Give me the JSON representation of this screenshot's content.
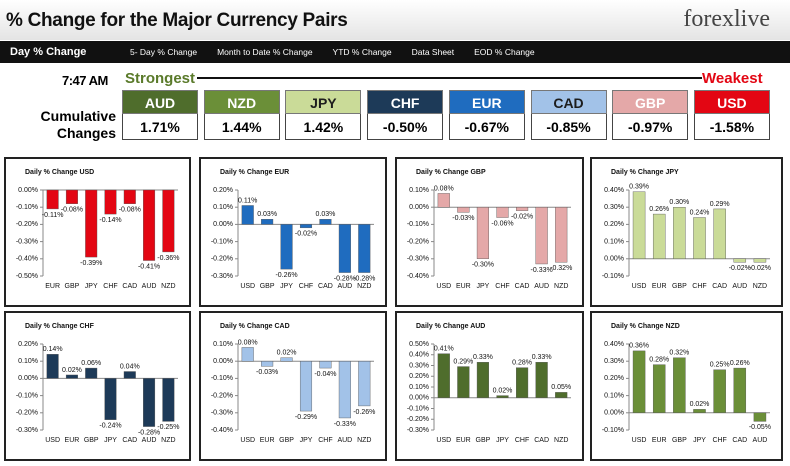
{
  "header": {
    "title": "% Change for the Major Currency Pairs",
    "logo": "forexlive"
  },
  "tabs": [
    "Day % Change",
    "5- Day % Change",
    "Month to Date % Change",
    "YTD % Change",
    "Data Sheet",
    "EOD % Change"
  ],
  "time": "7:47 AM",
  "strongest": "Strongest",
  "weakest": "Weakest",
  "cumulative": {
    "label": "Cumulative Changes",
    "currencies": [
      "AUD",
      "NZD",
      "JPY",
      "CHF",
      "EUR",
      "CAD",
      "GBP",
      "USD"
    ],
    "colors": [
      "#4f6d2c",
      "#6b8f38",
      "#cadb98",
      "#1d3a58",
      "#1f6cbf",
      "#a2c2e8",
      "#e4a8a8",
      "#e30613"
    ],
    "text_colors": [
      "#ffffff",
      "#ffffff",
      "#1d1d1d",
      "#ffffff",
      "#ffffff",
      "#1d1d1d",
      "#ffffff",
      "#ffffff"
    ],
    "values": [
      1.71,
      1.44,
      1.42,
      -0.5,
      -0.67,
      -0.85,
      -0.97,
      -1.58
    ],
    "value_labels": [
      "1.71%",
      "1.44%",
      "1.42%",
      "-0.50%",
      "-0.67%",
      "-0.85%",
      "-0.97%",
      "-1.58%"
    ]
  },
  "chart_data": [
    {
      "type": "bar",
      "title": "Daily % Change USD",
      "color": "#e30613",
      "categories": [
        "EUR",
        "GBP",
        "JPY",
        "CHF",
        "CAD",
        "AUD",
        "NZD"
      ],
      "values": [
        -0.11,
        -0.08,
        -0.39,
        -0.14,
        -0.08,
        -0.41,
        -0.36
      ],
      "value_labels": [
        "-0.11%",
        "-0.08%",
        "-0.39%",
        "-0.14%",
        "-0.08%",
        "-0.41%",
        "-0.36%"
      ],
      "ylim": [
        -0.5,
        0
      ],
      "yticks": [
        {
          "value": 0,
          "label": "0.00%"
        },
        {
          "value": -0.1,
          "label": "-0.10%"
        },
        {
          "value": -0.2,
          "label": "-0.20%"
        },
        {
          "value": -0.3,
          "label": "-0.30%"
        },
        {
          "value": -0.4,
          "label": "-0.40%"
        },
        {
          "value": -0.5,
          "label": "-0.50%"
        }
      ]
    },
    {
      "type": "bar",
      "title": "Daily % Change EUR",
      "color": "#1f6cbf",
      "categories": [
        "USD",
        "GBP",
        "JPY",
        "CHF",
        "CAD",
        "AUD",
        "NZD"
      ],
      "values": [
        0.11,
        0.03,
        -0.26,
        -0.02,
        0.03,
        -0.28,
        -0.28
      ],
      "value_labels": [
        "0.11%",
        "0.03%",
        "-0.26%",
        "-0.02%",
        "0.03%",
        "-0.28%",
        "-0.28%"
      ],
      "ylim": [
        -0.3,
        0.2
      ],
      "yticks": [
        {
          "value": 0.2,
          "label": "0.20%"
        },
        {
          "value": 0.1,
          "label": "0.10%"
        },
        {
          "value": 0,
          "label": "0.00%"
        },
        {
          "value": -0.1,
          "label": "-0.10%"
        },
        {
          "value": -0.2,
          "label": "-0.20%"
        },
        {
          "value": -0.3,
          "label": "-0.30%"
        }
      ]
    },
    {
      "type": "bar",
      "title": "Daily % Change GBP",
      "color": "#e4a8a8",
      "categories": [
        "USD",
        "EUR",
        "JPY",
        "CHF",
        "CAD",
        "AUD",
        "NZD"
      ],
      "values": [
        0.08,
        -0.03,
        -0.3,
        -0.06,
        -0.02,
        -0.33,
        -0.32
      ],
      "value_labels": [
        "0.08%",
        "-0.03%",
        "-0.30%",
        "-0.06%",
        "-0.02%",
        "-0.33%",
        "-0.32%"
      ],
      "ylim": [
        -0.4,
        0.1
      ],
      "yticks": [
        {
          "value": 0.1,
          "label": "0.10%"
        },
        {
          "value": 0,
          "label": "0.00%"
        },
        {
          "value": -0.1,
          "label": "-0.10%"
        },
        {
          "value": -0.2,
          "label": "-0.20%"
        },
        {
          "value": -0.3,
          "label": "-0.30%"
        },
        {
          "value": -0.4,
          "label": "-0.40%"
        }
      ]
    },
    {
      "type": "bar",
      "title": "Daily % Change JPY",
      "color": "#cadb98",
      "categories": [
        "USD",
        "EUR",
        "GBP",
        "CHF",
        "CAD",
        "AUD",
        "NZD"
      ],
      "values": [
        0.39,
        0.26,
        0.3,
        0.24,
        0.29,
        -0.02,
        -0.02
      ],
      "value_labels": [
        "0.39%",
        "0.26%",
        "0.30%",
        "0.24%",
        "0.29%",
        "-0.02%",
        "-0.02%"
      ],
      "ylim": [
        -0.1,
        0.4
      ],
      "yticks": [
        {
          "value": 0.4,
          "label": "0.40%"
        },
        {
          "value": 0.3,
          "label": "0.30%"
        },
        {
          "value": 0.2,
          "label": "0.20%"
        },
        {
          "value": 0.1,
          "label": "0.10%"
        },
        {
          "value": 0,
          "label": "0.00%"
        },
        {
          "value": -0.1,
          "label": "-0.10%"
        }
      ]
    },
    {
      "type": "bar",
      "title": "Daily % Change CHF",
      "color": "#1d3a58",
      "categories": [
        "USD",
        "EUR",
        "GBP",
        "JPY",
        "CAD",
        "AUD",
        "NZD"
      ],
      "values": [
        0.14,
        0.02,
        0.06,
        -0.24,
        0.04,
        -0.28,
        -0.25
      ],
      "value_labels": [
        "0.14%",
        "0.02%",
        "0.06%",
        "-0.24%",
        "0.04%",
        "-0.28%",
        "-0.25%"
      ],
      "ylim": [
        -0.3,
        0.2
      ],
      "yticks": [
        {
          "value": 0.2,
          "label": "0.20%"
        },
        {
          "value": 0.1,
          "label": "0.10%"
        },
        {
          "value": 0,
          "label": "0.00%"
        },
        {
          "value": -0.1,
          "label": "-0.10%"
        },
        {
          "value": -0.2,
          "label": "-0.20%"
        },
        {
          "value": -0.3,
          "label": "-0.30%"
        }
      ]
    },
    {
      "type": "bar",
      "title": "Daily % Change CAD",
      "color": "#a2c2e8",
      "categories": [
        "USD",
        "EUR",
        "GBP",
        "JPY",
        "CHF",
        "AUD",
        "NZD"
      ],
      "values": [
        0.08,
        -0.03,
        0.02,
        -0.29,
        -0.04,
        -0.33,
        -0.26
      ],
      "value_labels": [
        "0.08%",
        "-0.03%",
        "0.02%",
        "-0.29%",
        "-0.04%",
        "-0.33%",
        "-0.26%"
      ],
      "ylim": [
        -0.4,
        0.1
      ],
      "yticks": [
        {
          "value": 0.1,
          "label": "0.10%"
        },
        {
          "value": 0,
          "label": "0.00%"
        },
        {
          "value": -0.1,
          "label": "-0.10%"
        },
        {
          "value": -0.2,
          "label": "-0.20%"
        },
        {
          "value": -0.3,
          "label": "-0.30%"
        },
        {
          "value": -0.4,
          "label": "-0.40%"
        }
      ]
    },
    {
      "type": "bar",
      "title": "Daily % Change AUD",
      "color": "#4f6d2c",
      "categories": [
        "USD",
        "EUR",
        "GBP",
        "JPY",
        "CHF",
        "CAD",
        "NZD"
      ],
      "values": [
        0.41,
        0.29,
        0.33,
        0.02,
        0.28,
        0.33,
        0.05
      ],
      "value_labels": [
        "0.41%",
        "0.29%",
        "0.33%",
        "0.02%",
        "0.28%",
        "0.33%",
        "0.05%"
      ],
      "ylim": [
        -0.3,
        0.5
      ],
      "yticks": [
        {
          "value": 0.5,
          "label": "0.50%"
        },
        {
          "value": 0.4,
          "label": "0.40%"
        },
        {
          "value": 0.3,
          "label": "0.30%"
        },
        {
          "value": 0.2,
          "label": "0.20%"
        },
        {
          "value": 0.1,
          "label": "0.10%"
        },
        {
          "value": 0,
          "label": "0.00%"
        },
        {
          "value": -0.1,
          "label": "-0.10%"
        },
        {
          "value": -0.2,
          "label": "-0.20%"
        },
        {
          "value": -0.3,
          "label": "-0.30%"
        }
      ]
    },
    {
      "type": "bar",
      "title": "Daily % Change NZD",
      "color": "#6b8f38",
      "categories": [
        "USD",
        "EUR",
        "GBP",
        "JPY",
        "CHF",
        "CAD",
        "AUD"
      ],
      "values": [
        0.36,
        0.28,
        0.32,
        0.02,
        0.25,
        0.26,
        -0.05
      ],
      "value_labels": [
        "0.36%",
        "0.28%",
        "0.32%",
        "0.02%",
        "0.25%",
        "0.26%",
        "-0.05%"
      ],
      "ylim": [
        -0.1,
        0.4
      ],
      "yticks": [
        {
          "value": 0.4,
          "label": "0.40%"
        },
        {
          "value": 0.3,
          "label": "0.30%"
        },
        {
          "value": 0.2,
          "label": "0.20%"
        },
        {
          "value": 0.1,
          "label": "0.10%"
        },
        {
          "value": 0,
          "label": "0.00%"
        },
        {
          "value": -0.1,
          "label": "-0.10%"
        }
      ]
    }
  ]
}
